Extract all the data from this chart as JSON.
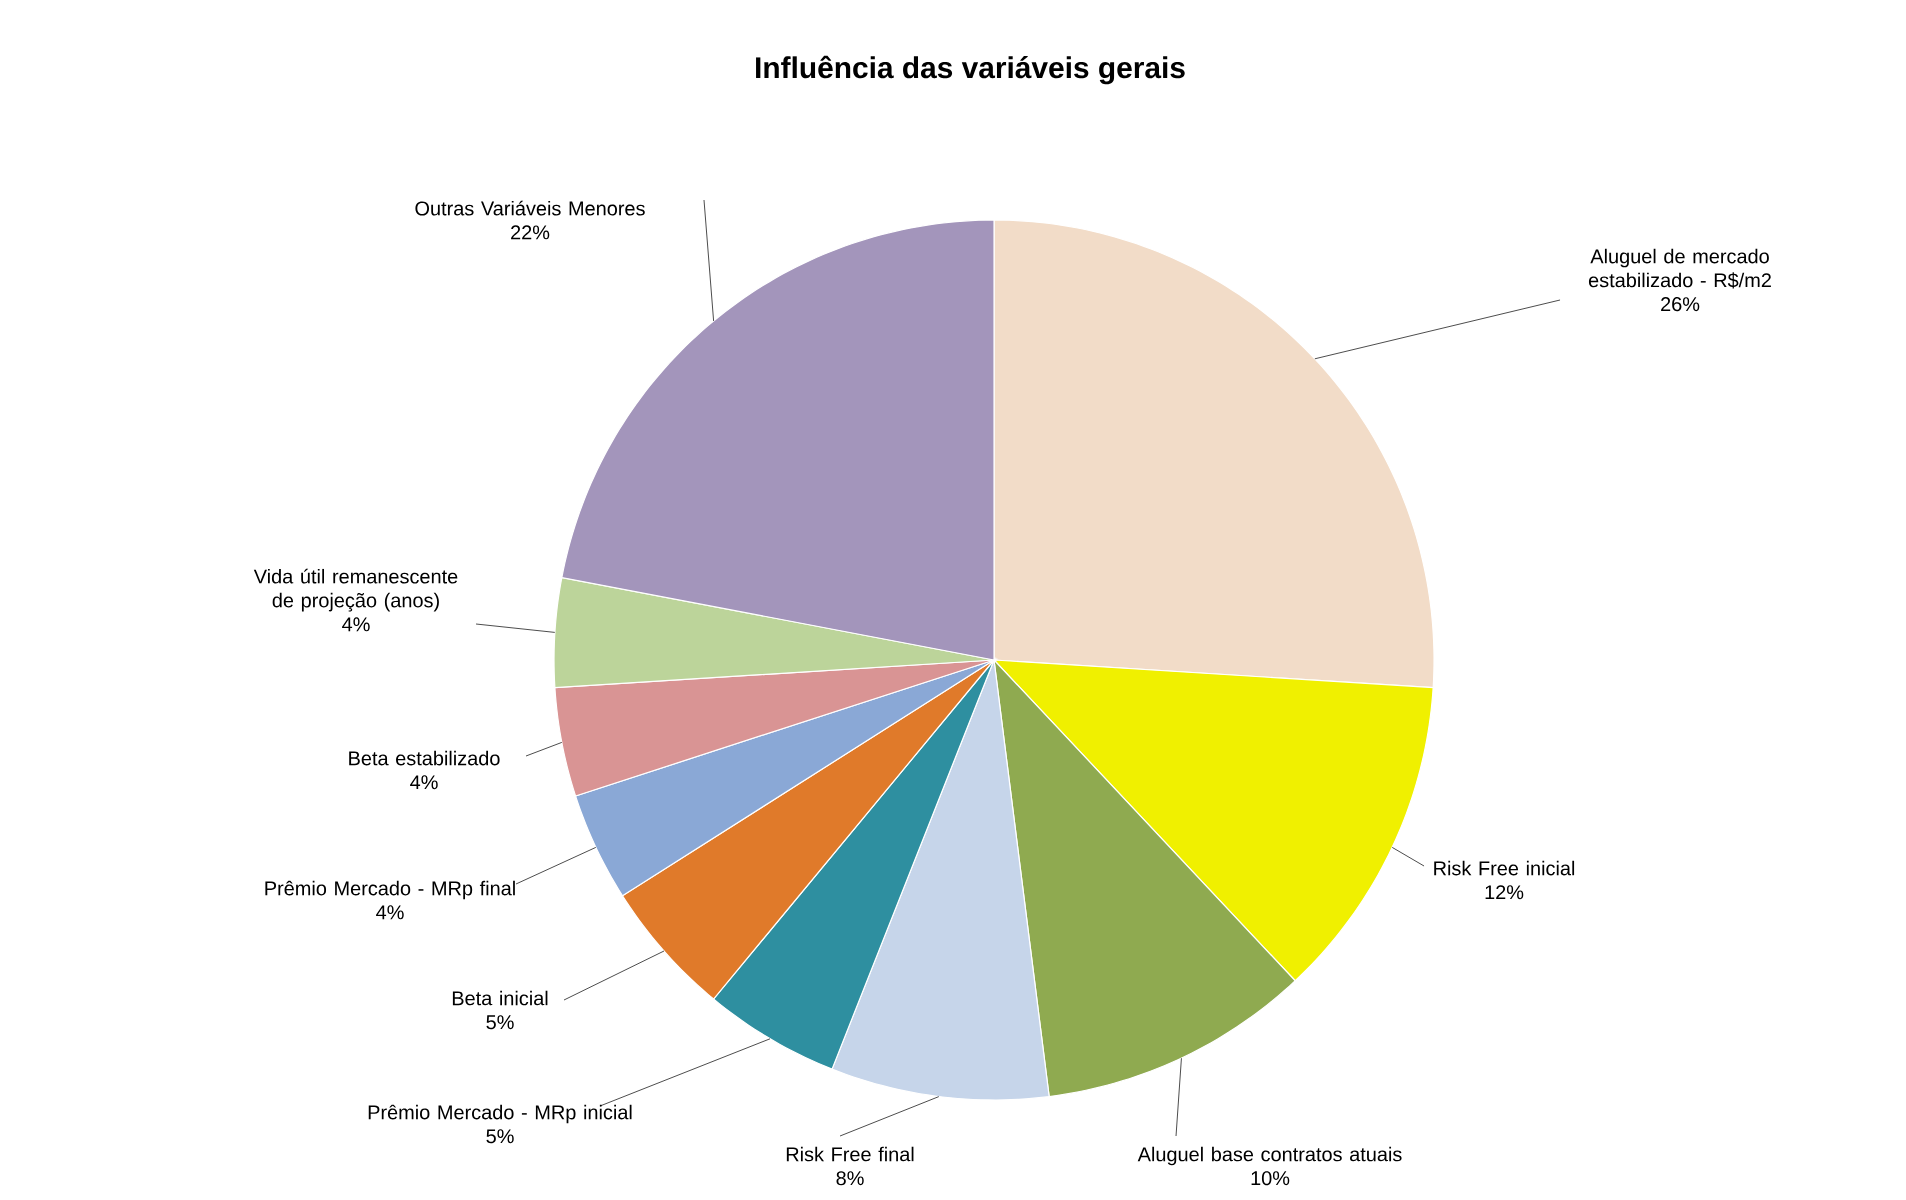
{
  "chart_data": {
    "type": "pie",
    "title": "Influência das variáveis gerais",
    "categories": [
      "Aluguel de mercado estabilizado - R$/m2",
      "Risk Free inicial",
      "Aluguel base contratos atuais",
      "Risk Free final",
      "Prêmio Mercado - MRp inicial",
      "Beta inicial",
      "Prêmio Mercado - MRp final",
      "Beta estabilizado",
      "Vida útil remanescente de projeção (anos)",
      "Outras Variáveis Menores"
    ],
    "values": [
      26,
      12,
      10,
      8,
      5,
      5,
      4,
      4,
      4,
      22
    ],
    "value_labels": [
      "26%",
      "12%",
      "10%",
      "8%",
      "5%",
      "5%",
      "4%",
      "4%",
      "4%",
      "22%"
    ],
    "colors": [
      "#f2dcc8",
      "#f0f000",
      "#8faa50",
      "#c6d5ea",
      "#2e8fa0",
      "#e07a2a",
      "#8aa8d6",
      "#d99494",
      "#bcd49a",
      "#a395bb"
    ]
  }
}
